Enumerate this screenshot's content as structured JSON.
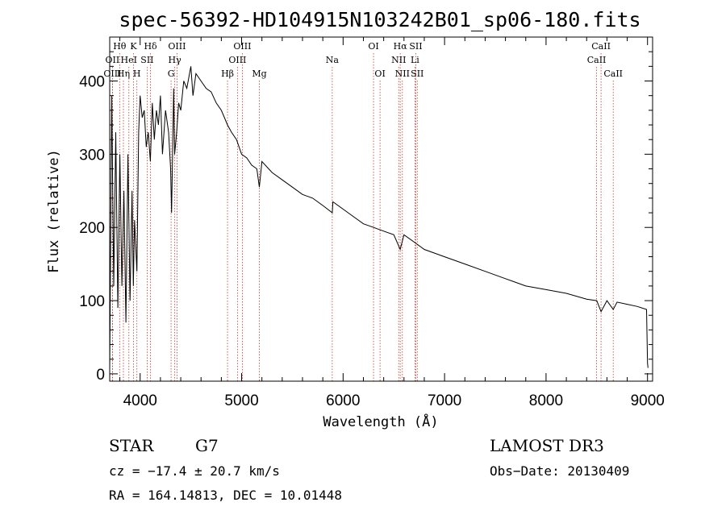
{
  "chart_data": {
    "type": "line",
    "title": "spec-56392-HD104915N103242B01_sp06-180.fits",
    "xlabel": "Wavelength (Å)",
    "ylabel": "Flux (relative)",
    "xlim": [
      3700,
      9050
    ],
    "ylim": [
      -10,
      460
    ],
    "xticks": [
      4000,
      5000,
      6000,
      7000,
      8000,
      9000
    ],
    "yticks": [
      0,
      100,
      200,
      300,
      400
    ],
    "series": [
      {
        "name": "flux",
        "x": [
          3700,
          3720,
          3740,
          3760,
          3780,
          3800,
          3820,
          3840,
          3860,
          3880,
          3900,
          3920,
          3933,
          3945,
          3968,
          3985,
          4000,
          4020,
          4040,
          4060,
          4080,
          4101,
          4120,
          4140,
          4160,
          4180,
          4200,
          4220,
          4250,
          4280,
          4300,
          4310,
          4330,
          4340,
          4360,
          4380,
          4400,
          4430,
          4460,
          4500,
          4520,
          4550,
          4600,
          4650,
          4700,
          4750,
          4800,
          4861,
          4900,
          4950,
          5000,
          5050,
          5100,
          5150,
          5175,
          5200,
          5300,
          5400,
          5500,
          5600,
          5700,
          5800,
          5893,
          5900,
          6000,
          6100,
          6200,
          6300,
          6400,
          6500,
          6563,
          6600,
          6700,
          6800,
          7000,
          7200,
          7400,
          7600,
          7800,
          8000,
          8200,
          8400,
          8500,
          8542,
          8600,
          8662,
          8700,
          8800,
          8900,
          8990,
          9000,
          9005
        ],
        "values": [
          5,
          380,
          120,
          330,
          90,
          300,
          120,
          250,
          70,
          300,
          100,
          250,
          120,
          210,
          140,
          330,
          380,
          350,
          360,
          310,
          330,
          290,
          370,
          320,
          360,
          340,
          380,
          300,
          360,
          330,
          280,
          220,
          390,
          300,
          330,
          370,
          360,
          400,
          390,
          420,
          380,
          410,
          400,
          390,
          385,
          370,
          360,
          340,
          330,
          320,
          300,
          295,
          285,
          280,
          255,
          290,
          275,
          265,
          255,
          245,
          240,
          230,
          220,
          235,
          225,
          215,
          205,
          200,
          195,
          190,
          170,
          190,
          180,
          170,
          160,
          150,
          140,
          130,
          120,
          115,
          110,
          102,
          100,
          85,
          100,
          88,
          98,
          95,
          92,
          88,
          15,
          8
        ]
      }
    ],
    "lines": [
      {
        "name": "Hθ",
        "wave": 3798,
        "label_row": 1
      },
      {
        "name": "OII",
        "wave": 3727,
        "label_row": 2
      },
      {
        "name": "OIII",
        "wave": 3727,
        "label_row": 3
      },
      {
        "name": "HeI",
        "wave": 3889,
        "label_row": 2
      },
      {
        "name": "Hη",
        "wave": 3835,
        "label_row": 3
      },
      {
        "name": "K",
        "wave": 3934,
        "label_row": 1
      },
      {
        "name": "SII",
        "wave": 4069,
        "label_row": 2
      },
      {
        "name": "H",
        "wave": 3968,
        "label_row": 3
      },
      {
        "name": "Hδ",
        "wave": 4102,
        "label_row": 1
      },
      {
        "name": "OIII",
        "wave": 4363,
        "label_row": 1
      },
      {
        "name": "Hγ",
        "wave": 4341,
        "label_row": 2
      },
      {
        "name": "G",
        "wave": 4305,
        "label_row": 3
      },
      {
        "name": "Hβ",
        "wave": 4861,
        "label_row": 3
      },
      {
        "name": "OIII",
        "wave": 5007,
        "label_row": 1
      },
      {
        "name": "OIII",
        "wave": 4959,
        "label_row": 2
      },
      {
        "name": "Mg",
        "wave": 5175,
        "label_row": 3
      },
      {
        "name": "Na",
        "wave": 5893,
        "label_row": 2
      },
      {
        "name": "OI",
        "wave": 6300,
        "label_row": 1
      },
      {
        "name": "OI",
        "wave": 6364,
        "label_row": 3
      },
      {
        "name": "Hα",
        "wave": 6563,
        "label_row": 1
      },
      {
        "name": "SII",
        "wave": 6717,
        "label_row": 1
      },
      {
        "name": "NII",
        "wave": 6548,
        "label_row": 2
      },
      {
        "name": "Li",
        "wave": 6708,
        "label_row": 2
      },
      {
        "name": "NII",
        "wave": 6584,
        "label_row": 3
      },
      {
        "name": "SII",
        "wave": 6731,
        "label_row": 3
      },
      {
        "name": "CaII",
        "wave": 8542,
        "label_row": 1
      },
      {
        "name": "CaII",
        "wave": 8498,
        "label_row": 2
      },
      {
        "name": "CaII",
        "wave": 8662,
        "label_row": 3
      }
    ]
  },
  "info": {
    "class_label": "STAR",
    "subclass": "G7",
    "survey": "LAMOST DR3",
    "redshift": "cz = −17.4 ± 20.7 km/s",
    "obs_date": "Obs−Date: 20130409",
    "coords": "RA = 164.14813, DEC =  10.01448"
  }
}
